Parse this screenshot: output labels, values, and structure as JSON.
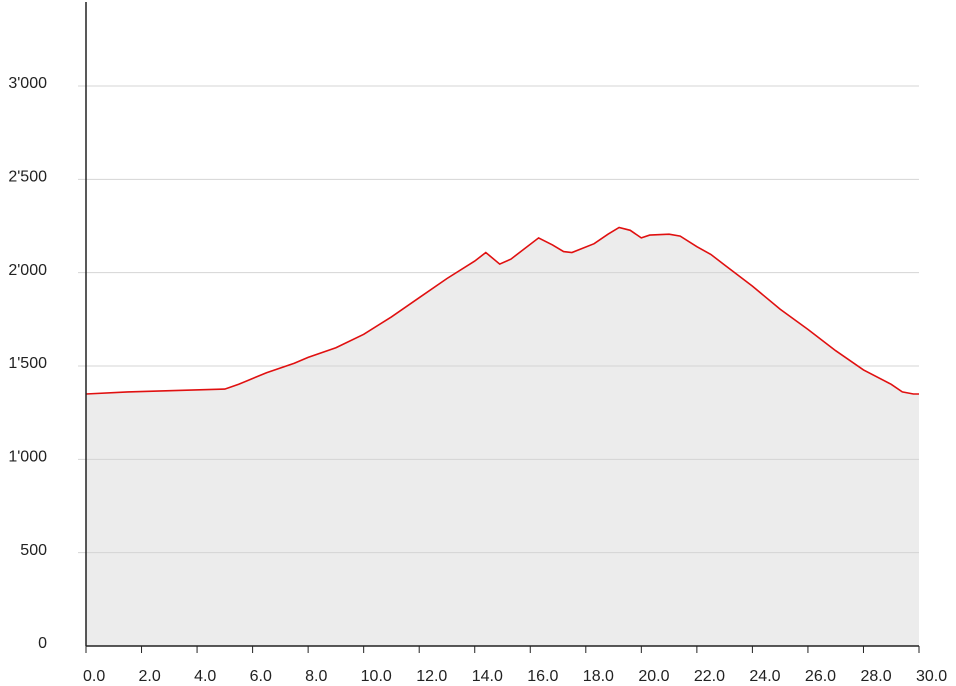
{
  "chart_data": {
    "type": "area",
    "x": [
      0,
      1.5,
      5,
      5.5,
      6.5,
      7.5,
      8,
      9,
      10,
      11,
      12,
      13,
      14,
      14.4,
      14.9,
      15.3,
      16.3,
      16.8,
      17.2,
      17.5,
      18.3,
      18.8,
      19.2,
      19.6,
      20,
      20.3,
      21,
      21.4,
      22,
      22.5,
      23,
      24,
      25,
      26,
      27,
      28,
      29,
      29.4,
      29.8,
      30
    ],
    "values": [
      1350,
      1361,
      1376,
      1402,
      1464,
      1515,
      1546,
      1598,
      1670,
      1763,
      1866,
      1969,
      2062,
      2108,
      2046,
      2072,
      2186,
      2149,
      2113,
      2108,
      2155,
      2206,
      2242,
      2227,
      2186,
      2201,
      2206,
      2196,
      2139,
      2098,
      2041,
      1928,
      1804,
      1696,
      1582,
      1479,
      1402,
      1361,
      1350,
      1350
    ],
    "color": "#e01010",
    "fill_color": "#ececec",
    "xlim": [
      0,
      30
    ],
    "xticks": [
      {
        "value": 0,
        "label": "0.0"
      },
      {
        "value": 2,
        "label": "2.0"
      },
      {
        "value": 4,
        "label": "4.0"
      },
      {
        "value": 6,
        "label": "6.0"
      },
      {
        "value": 8,
        "label": "8.0"
      },
      {
        "value": 10,
        "label": "10.0"
      },
      {
        "value": 12,
        "label": "12.0"
      },
      {
        "value": 14,
        "label": "14.0"
      },
      {
        "value": 16,
        "label": "16.0"
      },
      {
        "value": 18,
        "label": "18.0"
      },
      {
        "value": 20,
        "label": "20.0"
      },
      {
        "value": 22,
        "label": "22.0"
      },
      {
        "value": 24,
        "label": "24.0"
      },
      {
        "value": 26,
        "label": "26.0"
      },
      {
        "value": 28,
        "label": "28.0"
      },
      {
        "value": 30,
        "label": "30.0"
      }
    ],
    "ylim": [
      0,
      3450
    ],
    "yticks": [
      0,
      500,
      {
        "value": 1000,
        "label": "1'000"
      },
      {
        "value": 1500,
        "label": "1'500"
      },
      {
        "value": 2000,
        "label": "2'000"
      },
      {
        "value": 2500,
        "label": "2'500"
      },
      {
        "value": 3000,
        "label": "3'000"
      }
    ],
    "grid": true
  }
}
